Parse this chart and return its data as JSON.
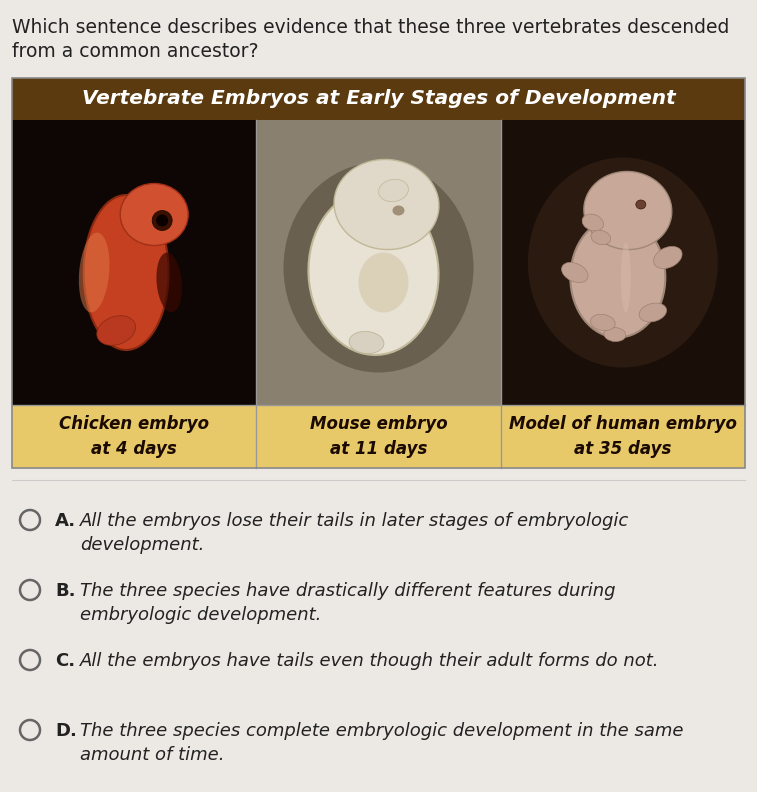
{
  "bg_color": "#ece9e4",
  "question_text_line1": "Which sentence describes evidence that these three vertebrates descended",
  "question_text_line2": "from a common ancestor?",
  "question_fontsize": 13.5,
  "question_color": "#222222",
  "chart_title": "Vertebrate Embryos at Early Stages of Development",
  "chart_title_fontsize": 14.5,
  "chart_title_color": "#ffffff",
  "chart_title_bg": "#5c3a10",
  "caption_bg": "#e8c96a",
  "caption_color": "#1a0a00",
  "captions": [
    "Chicken embryo\nat 4 days",
    "Mouse embryo\nat 11 days",
    "Model of human embryo\nat 35 days"
  ],
  "caption_fontsize": 12,
  "options": [
    {
      "letter": "A.",
      "text": "All the embryos lose their tails in later stages of embryologic\ndevelopment."
    },
    {
      "letter": "B.",
      "text": "The three species have drastically different features during\nembryologic development."
    },
    {
      "letter": "C.",
      "text": "All the embryos have tails even though their adult forms do not."
    },
    {
      "letter": "D.",
      "text": "The three species complete embryologic development in the same\namount of time."
    }
  ],
  "option_fontsize": 13,
  "option_color": "#222222",
  "circle_color": "#666666",
  "border_color": "#aaaaaa",
  "chart_border_color": "#888888"
}
